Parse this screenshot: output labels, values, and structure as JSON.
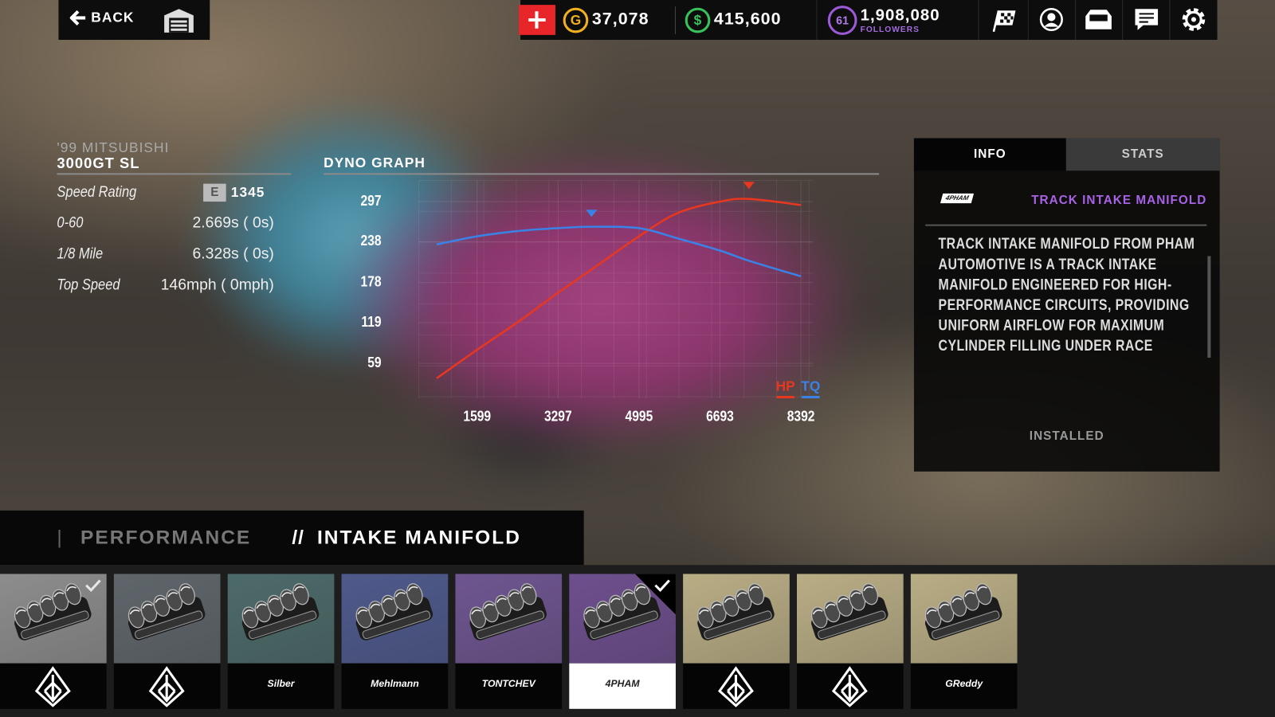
{
  "header": {
    "back": "BACK",
    "gold": "37,078",
    "cash": "415,600",
    "level": "61",
    "followers": "1,908,080",
    "followers_label": "FOLLOWERS"
  },
  "car": {
    "year_make": "'99 MITSUBISHI",
    "model": "3000GT SL"
  },
  "stats": [
    {
      "label": "Speed Rating",
      "class": "E",
      "value": "1345"
    },
    {
      "label": "0-60",
      "value": "2.669s ( 0s)"
    },
    {
      "label": "1/8 Mile",
      "value": "6.328s ( 0s)"
    },
    {
      "label": "Top Speed",
      "value": "146mph ( 0mph)"
    }
  ],
  "chart_data": {
    "type": "line",
    "title": "DYNO GRAPH",
    "x": [
      750,
      1599,
      2500,
      3297,
      4000,
      4995,
      5800,
      6693,
      7300,
      8392
    ],
    "series": [
      {
        "name": "HP",
        "color": "#e8371f",
        "values": [
          37,
          79,
          122,
          163,
          197,
          246,
          280,
          297,
          301,
          292
        ]
      },
      {
        "name": "TQ",
        "color": "#3b82e6",
        "values": [
          234,
          246,
          254,
          258,
          260,
          258,
          243,
          225,
          210,
          187
        ]
      }
    ],
    "xlim": [
      750,
      8392
    ],
    "ylim": [
      30,
      320
    ],
    "xticks": [
      1599,
      3297,
      4995,
      6693,
      8392
    ],
    "yticks": [
      59,
      119,
      178,
      238,
      297
    ],
    "grid": true
  },
  "panel": {
    "tabs": [
      "INFO",
      "STATS"
    ],
    "brand": "4PHAM",
    "part": "TRACK INTAKE MANIFOLD",
    "description": [
      "TRACK INTAKE MANIFOLD  FROM PHAM",
      "AUTOMOTIVE IS A TRACK INTAKE",
      "MANIFOLD ENGINEERED FOR HIGH-",
      "PERFORMANCE CIRCUITS, PROVIDING",
      "UNIFORM AIRFLOW FOR MAXIMUM",
      "CYLINDER FILLING UNDER RACE"
    ],
    "status": "INSTALLED"
  },
  "breadcrumb": {
    "section": "PERFORMANCE",
    "separator": "//",
    "current": "INTAKE MANIFOLD"
  },
  "parts": [
    {
      "color": "#8d8d8d",
      "checked": true
    },
    {
      "color": "#5f666b"
    },
    {
      "color": "#4d6a6a",
      "brand": "Silber"
    },
    {
      "color": "#4f5a8c",
      "brand": "Mehlmann"
    },
    {
      "color": "#6e5590",
      "brand": "TONTCHEV"
    },
    {
      "color": "#6e4f8e",
      "brand": "4PHAM",
      "selected": true,
      "checked": true
    },
    {
      "color": "#b9ad85"
    },
    {
      "color": "#b9ad85"
    },
    {
      "color": "#b9ad85",
      "brand": "GReddy"
    }
  ]
}
